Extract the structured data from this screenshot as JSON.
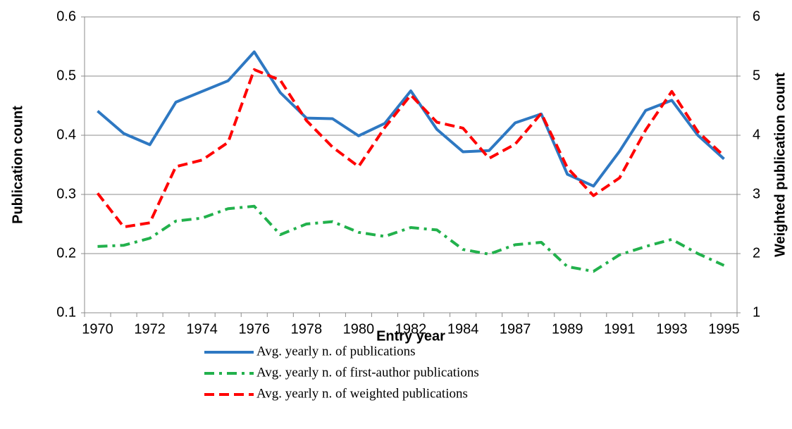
{
  "chart_data": {
    "type": "line",
    "x_label": "Entry year",
    "y_label": "Publication count",
    "y2_label": "Weighted publication count",
    "categories": [
      "1970",
      null,
      "1972",
      null,
      "1974",
      null,
      "1976",
      null,
      "1978",
      null,
      "1980",
      null,
      "1982",
      null,
      "1984",
      null,
      "1987",
      null,
      "1989",
      null,
      "1991",
      null,
      "1993",
      null,
      "1995"
    ],
    "ylim": [
      0.1,
      0.6
    ],
    "yticks": [
      0.1,
      0.2,
      0.3,
      0.4,
      0.5,
      0.6
    ],
    "y2lim": [
      1,
      6
    ],
    "y2ticks": [
      1,
      2,
      3,
      4,
      5,
      6
    ],
    "grid": true,
    "legend": "bottom",
    "series": [
      {
        "name": "Avg. yearly n. of publications",
        "color": "#2e78c2",
        "style": "solid",
        "values": [
          0.441,
          0.403,
          0.384,
          0.456,
          0.474,
          0.492,
          0.541,
          0.472,
          0.429,
          0.428,
          0.399,
          0.42,
          0.475,
          0.41,
          0.372,
          0.374,
          0.421,
          0.436,
          0.334,
          0.314,
          0.373,
          0.442,
          0.459,
          0.4,
          0.36
        ]
      },
      {
        "name": "Avg. yearly n. of first-author publications",
        "color": "#22b14c",
        "style": "dash-dot",
        "values": [
          0.212,
          0.214,
          0.226,
          0.255,
          0.26,
          0.276,
          0.28,
          0.232,
          0.25,
          0.254,
          0.236,
          0.229,
          0.244,
          0.24,
          0.207,
          0.199,
          0.215,
          0.219,
          0.178,
          0.17,
          0.198,
          0.212,
          0.224,
          0.2,
          0.18
        ]
      },
      {
        "name": "Avg. yearly n. of weighted publications",
        "color": "#ff0000",
        "style": "dash",
        "axis": "y2",
        "values": [
          3.02,
          2.45,
          2.52,
          3.47,
          3.58,
          3.88,
          5.11,
          4.93,
          4.25,
          3.8,
          3.47,
          4.13,
          4.68,
          4.22,
          4.12,
          3.61,
          3.85,
          4.37,
          3.45,
          2.98,
          3.28,
          4.09,
          4.74,
          4.06,
          3.65
        ]
      }
    ]
  }
}
